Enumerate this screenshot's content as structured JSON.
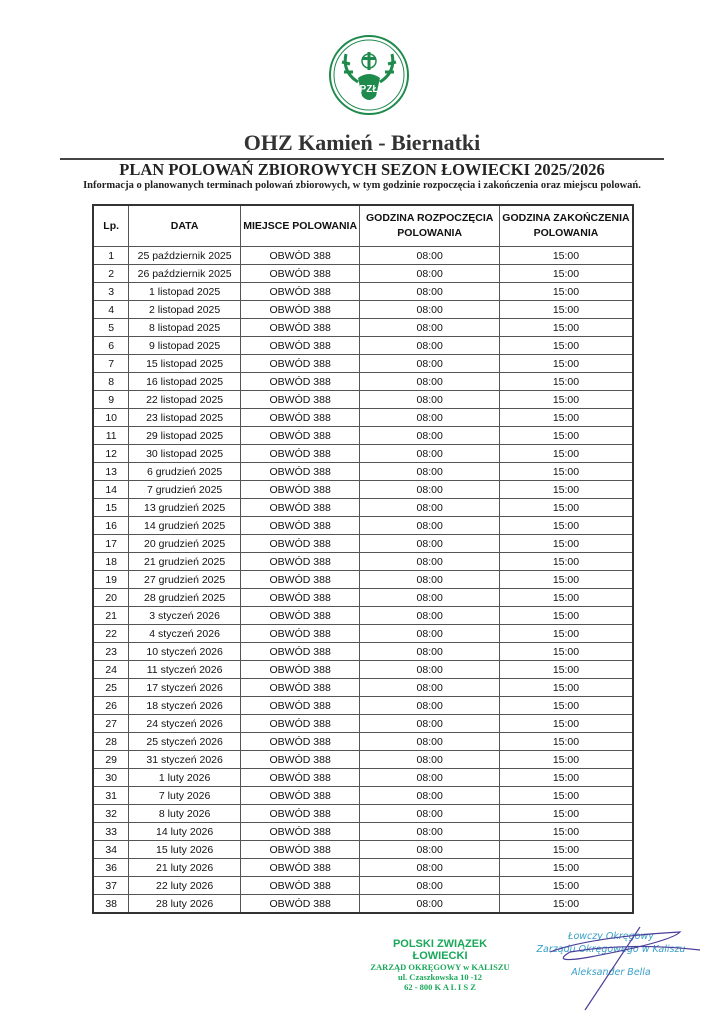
{
  "header": {
    "logo_text": "PZŁ",
    "title": "OHZ Kamień - Biernatki",
    "subtitle": "PLAN POLOWAŃ ZBIOROWYCH SEZON ŁOWIECKI 2025/2026",
    "info": "Informacja o planowanych terminach polowań zbiorowych, w tym godzinie rozpoczęcia i zakończenia oraz miejscu polowań."
  },
  "table": {
    "columns": [
      "Lp.",
      "DATA",
      "MIEJSCE POLOWANIA",
      "GODZINA ROZPOCZĘCIA POLOWANIA",
      "GODZINA ZAKOŃCZENIA POLOWANIA"
    ],
    "rows": [
      [
        "1",
        "25 październik 2025",
        "OBWÓD 388",
        "08:00",
        "15:00"
      ],
      [
        "2",
        "26 październik 2025",
        "OBWÓD 388",
        "08:00",
        "15:00"
      ],
      [
        "3",
        "1 listopad 2025",
        "OBWÓD 388",
        "08:00",
        "15:00"
      ],
      [
        "4",
        "2 listopad 2025",
        "OBWÓD 388",
        "08:00",
        "15:00"
      ],
      [
        "5",
        "8 listopad 2025",
        "OBWÓD 388",
        "08:00",
        "15:00"
      ],
      [
        "6",
        "9 listopad 2025",
        "OBWÓD 388",
        "08:00",
        "15:00"
      ],
      [
        "7",
        "15 listopad 2025",
        "OBWÓD 388",
        "08:00",
        "15:00"
      ],
      [
        "8",
        "16 listopad 2025",
        "OBWÓD 388",
        "08:00",
        "15:00"
      ],
      [
        "9",
        "22 listopad 2025",
        "OBWÓD 388",
        "08:00",
        "15:00"
      ],
      [
        "10",
        "23 listopad 2025",
        "OBWÓD 388",
        "08:00",
        "15:00"
      ],
      [
        "11",
        "29 listopad 2025",
        "OBWÓD 388",
        "08:00",
        "15:00"
      ],
      [
        "12",
        "30 listopad 2025",
        "OBWÓD 388",
        "08:00",
        "15:00"
      ],
      [
        "13",
        "6 grudzień 2025",
        "OBWÓD 388",
        "08:00",
        "15:00"
      ],
      [
        "14",
        "7 grudzień 2025",
        "OBWÓD 388",
        "08:00",
        "15:00"
      ],
      [
        "15",
        "13 grudzień 2025",
        "OBWÓD 388",
        "08:00",
        "15:00"
      ],
      [
        "16",
        "14 grudzień 2025",
        "OBWÓD 388",
        "08:00",
        "15:00"
      ],
      [
        "17",
        "20 grudzień 2025",
        "OBWÓD 388",
        "08:00",
        "15:00"
      ],
      [
        "18",
        "21 grudzień 2025",
        "OBWÓD 388",
        "08:00",
        "15:00"
      ],
      [
        "19",
        "27 grudzień 2025",
        "OBWÓD 388",
        "08:00",
        "15:00"
      ],
      [
        "20",
        "28 grudzień 2025",
        "OBWÓD 388",
        "08:00",
        "15:00"
      ],
      [
        "21",
        "3 styczeń 2026",
        "OBWÓD 388",
        "08:00",
        "15:00"
      ],
      [
        "22",
        "4 styczeń 2026",
        "OBWÓD 388",
        "08:00",
        "15:00"
      ],
      [
        "23",
        "10 styczeń 2026",
        "OBWÓD 388",
        "08:00",
        "15:00"
      ],
      [
        "24",
        "11 styczeń 2026",
        "OBWÓD 388",
        "08:00",
        "15:00"
      ],
      [
        "25",
        "17 styczeń 2026",
        "OBWÓD 388",
        "08:00",
        "15:00"
      ],
      [
        "26",
        "18 styczeń 2026",
        "OBWÓD 388",
        "08:00",
        "15:00"
      ],
      [
        "27",
        "24 styczeń 2026",
        "OBWÓD 388",
        "08:00",
        "15:00"
      ],
      [
        "28",
        "25 styczeń 2026",
        "OBWÓD 388",
        "08:00",
        "15:00"
      ],
      [
        "29",
        "31 styczeń 2026",
        "OBWÓD 388",
        "08:00",
        "15:00"
      ],
      [
        "30",
        "1 luty 2026",
        "OBWÓD 388",
        "08:00",
        "15:00"
      ],
      [
        "31",
        "7 luty 2026",
        "OBWÓD 388",
        "08:00",
        "15:00"
      ],
      [
        "32",
        "8 luty 2026",
        "OBWÓD 388",
        "08:00",
        "15:00"
      ],
      [
        "33",
        "14 luty 2026",
        "OBWÓD 388",
        "08:00",
        "15:00"
      ],
      [
        "34",
        "15 luty 2026",
        "OBWÓD 388",
        "08:00",
        "15:00"
      ],
      [
        "36",
        "21 luty 2026",
        "OBWÓD 388",
        "08:00",
        "15:00"
      ],
      [
        "37",
        "22 luty 2026",
        "OBWÓD 388",
        "08:00",
        "15:00"
      ],
      [
        "38",
        "28 luty 2026",
        "OBWÓD 388",
        "08:00",
        "15:00"
      ]
    ]
  },
  "stamp": {
    "line1": "POLSKI ZWIĄZEK ŁOWIECKI",
    "line2": "ZARZĄD OKRĘGOWY w KALISZU",
    "line3": "ul. Czaszkowska 10 -12",
    "line4": "62 - 800  K A L I S Z"
  },
  "signature": {
    "line1": "Łowczy Okręgowy",
    "line2": "Zarządu Okręgowego w Kaliszu",
    "name": "Aleksander Bella"
  },
  "colors": {
    "stamp_green": "#1aa85a",
    "logo_green": "#1e8a4c",
    "signature_blue": "#3aa0c8"
  }
}
